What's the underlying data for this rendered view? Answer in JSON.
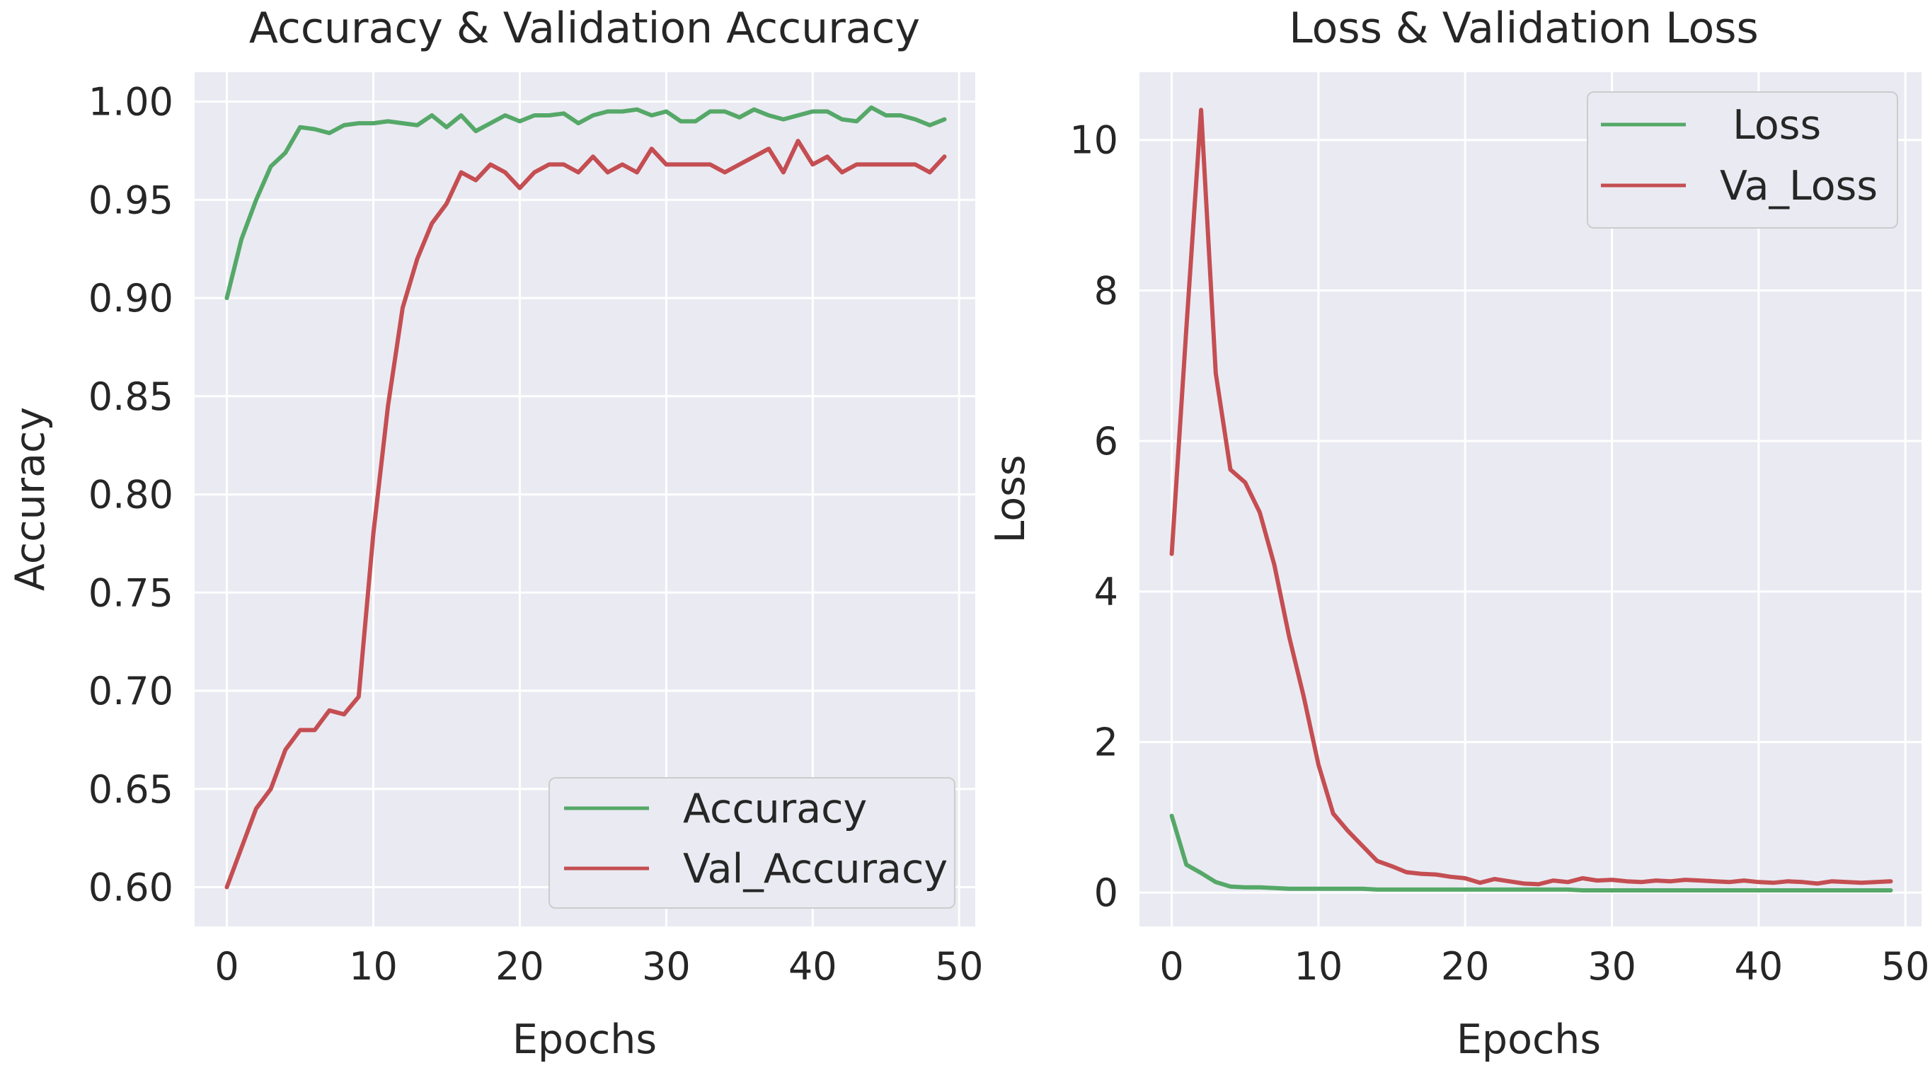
{
  "colors": {
    "panel_bg": "#eaeaf2",
    "grid": "#ffffff",
    "train": "#55a868",
    "val": "#c44e52",
    "text": "#262626"
  },
  "chart_data": [
    {
      "type": "line",
      "title": "Accuracy & Validation Accuracy",
      "xlabel": "Epochs",
      "ylabel": "Accuracy",
      "xlim": [
        -2.2,
        51.1
      ],
      "ylim": [
        0.58,
        1.015
      ],
      "xticks": [
        0,
        10,
        20,
        30,
        40,
        50
      ],
      "xtick_labels": [
        "0",
        "10",
        "20",
        "30",
        "40",
        "50"
      ],
      "yticks": [
        0.6,
        0.65,
        0.7,
        0.75,
        0.8,
        0.85,
        0.9,
        0.95,
        1.0
      ],
      "ytick_labels": [
        "0.60",
        "0.65",
        "0.70",
        "0.75",
        "0.80",
        "0.85",
        "0.90",
        "0.95",
        "1.00"
      ],
      "grid": true,
      "legend_position": "lower-right",
      "series": [
        {
          "name": "Accuracy",
          "color": "#55a868",
          "x": [
            0,
            1,
            2,
            3,
            4,
            5,
            6,
            7,
            8,
            9,
            10,
            11,
            12,
            13,
            14,
            15,
            16,
            17,
            18,
            19,
            20,
            21,
            22,
            23,
            24,
            25,
            26,
            27,
            28,
            29,
            30,
            31,
            32,
            33,
            34,
            35,
            36,
            37,
            38,
            39,
            40,
            41,
            42,
            43,
            44,
            45,
            46,
            47,
            48,
            49
          ],
          "values": [
            0.9,
            0.93,
            0.95,
            0.967,
            0.974,
            0.987,
            0.986,
            0.984,
            0.988,
            0.989,
            0.989,
            0.99,
            0.989,
            0.988,
            0.993,
            0.987,
            0.993,
            0.985,
            0.989,
            0.993,
            0.99,
            0.993,
            0.993,
            0.994,
            0.989,
            0.993,
            0.995,
            0.995,
            0.996,
            0.993,
            0.995,
            0.99,
            0.99,
            0.995,
            0.995,
            0.992,
            0.996,
            0.993,
            0.991,
            0.993,
            0.995,
            0.995,
            0.991,
            0.99,
            0.997,
            0.993,
            0.993,
            0.991,
            0.988,
            0.991
          ]
        },
        {
          "name": "Val_Accuracy",
          "color": "#c44e52",
          "x": [
            0,
            1,
            2,
            3,
            4,
            5,
            6,
            7,
            8,
            9,
            10,
            11,
            12,
            13,
            14,
            15,
            16,
            17,
            18,
            19,
            20,
            21,
            22,
            23,
            24,
            25,
            26,
            27,
            28,
            29,
            30,
            31,
            32,
            33,
            34,
            35,
            36,
            37,
            38,
            39,
            40,
            41,
            42,
            43,
            44,
            45,
            46,
            47,
            48,
            49
          ],
          "values": [
            0.6,
            0.62,
            0.64,
            0.65,
            0.67,
            0.68,
            0.68,
            0.69,
            0.688,
            0.697,
            0.78,
            0.845,
            0.895,
            0.92,
            0.938,
            0.948,
            0.964,
            0.96,
            0.968,
            0.964,
            0.956,
            0.964,
            0.968,
            0.968,
            0.964,
            0.972,
            0.964,
            0.968,
            0.964,
            0.976,
            0.968,
            0.968,
            0.968,
            0.968,
            0.964,
            0.968,
            0.972,
            0.976,
            0.964,
            0.98,
            0.968,
            0.972,
            0.964,
            0.968,
            0.968,
            0.968,
            0.968,
            0.968,
            0.964,
            0.972
          ]
        }
      ]
    },
    {
      "type": "line",
      "title": "Loss & Validation Loss",
      "xlabel": "Epochs",
      "ylabel": "Loss",
      "xlim": [
        -2.2,
        51.1
      ],
      "ylim": [
        -0.45,
        10.9
      ],
      "xticks": [
        0,
        10,
        20,
        30,
        40,
        50
      ],
      "xtick_labels": [
        "0",
        "10",
        "20",
        "30",
        "40",
        "50"
      ],
      "yticks": [
        0,
        2,
        4,
        6,
        8,
        10
      ],
      "ytick_labels": [
        "0",
        "2",
        "4",
        "6",
        "8",
        "10"
      ],
      "grid": true,
      "legend_position": "top-right",
      "series": [
        {
          "name": " Loss",
          "color": "#55a868",
          "x": [
            0,
            1,
            2,
            3,
            4,
            5,
            6,
            7,
            8,
            9,
            10,
            11,
            12,
            13,
            14,
            15,
            16,
            17,
            18,
            19,
            20,
            21,
            22,
            23,
            24,
            25,
            26,
            27,
            28,
            29,
            30,
            31,
            32,
            33,
            34,
            35,
            36,
            37,
            38,
            39,
            40,
            41,
            42,
            43,
            44,
            45,
            46,
            47,
            48,
            49
          ],
          "values": [
            1.02,
            0.37,
            0.26,
            0.14,
            0.08,
            0.07,
            0.07,
            0.06,
            0.05,
            0.05,
            0.05,
            0.05,
            0.05,
            0.05,
            0.04,
            0.04,
            0.04,
            0.04,
            0.04,
            0.04,
            0.04,
            0.04,
            0.04,
            0.04,
            0.04,
            0.04,
            0.04,
            0.04,
            0.03,
            0.03,
            0.03,
            0.03,
            0.03,
            0.03,
            0.03,
            0.03,
            0.03,
            0.03,
            0.03,
            0.03,
            0.03,
            0.03,
            0.03,
            0.03,
            0.03,
            0.03,
            0.03,
            0.03,
            0.03,
            0.03
          ]
        },
        {
          "name": "Va_Loss",
          "color": "#c44e52",
          "x": [
            0,
            1,
            2,
            3,
            4,
            5,
            6,
            7,
            8,
            9,
            10,
            11,
            12,
            13,
            14,
            15,
            16,
            17,
            18,
            19,
            20,
            21,
            22,
            23,
            24,
            25,
            26,
            27,
            28,
            29,
            30,
            31,
            32,
            33,
            34,
            35,
            36,
            37,
            38,
            39,
            40,
            41,
            42,
            43,
            44,
            45,
            46,
            47,
            48,
            49
          ],
          "values": [
            4.5,
            7.5,
            10.4,
            6.9,
            5.62,
            5.45,
            5.05,
            4.35,
            3.4,
            2.6,
            1.7,
            1.05,
            0.82,
            0.62,
            0.42,
            0.35,
            0.27,
            0.25,
            0.24,
            0.21,
            0.19,
            0.13,
            0.18,
            0.15,
            0.12,
            0.11,
            0.16,
            0.14,
            0.19,
            0.16,
            0.17,
            0.15,
            0.14,
            0.16,
            0.15,
            0.17,
            0.16,
            0.15,
            0.14,
            0.16,
            0.14,
            0.13,
            0.15,
            0.14,
            0.12,
            0.15,
            0.14,
            0.13,
            0.14,
            0.15
          ]
        }
      ]
    }
  ]
}
